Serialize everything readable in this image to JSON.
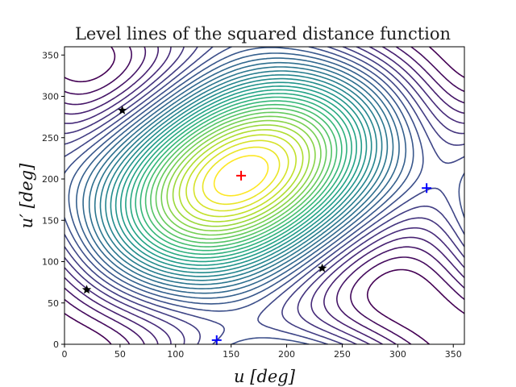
{
  "chart_data": {
    "type": "contour",
    "title": "Level lines of the squared distance function",
    "xlabel": "u [deg]",
    "ylabel": "u′ [deg]",
    "xlim": [
      0,
      360
    ],
    "ylim": [
      0,
      360
    ],
    "xticks": [
      0,
      50,
      100,
      150,
      200,
      250,
      300,
      350
    ],
    "yticks": [
      0,
      50,
      100,
      150,
      200,
      250,
      300,
      350
    ],
    "grid": false,
    "colormap": "viridis",
    "markers": [
      {
        "symbol": "plus",
        "color": "#ff0000",
        "x": 159,
        "y": 204
      },
      {
        "symbol": "plus",
        "color": "#0000ff",
        "x": 326,
        "y": 189
      },
      {
        "symbol": "plus",
        "color": "#0000ff",
        "x": 137,
        "y": 5
      },
      {
        "symbol": "star",
        "color": "#000000",
        "x": 52,
        "y": 283
      },
      {
        "symbol": "star",
        "color": "#000000",
        "x": 20,
        "y": 66
      },
      {
        "symbol": "star",
        "color": "#000000",
        "x": 232,
        "y": 92
      }
    ]
  }
}
